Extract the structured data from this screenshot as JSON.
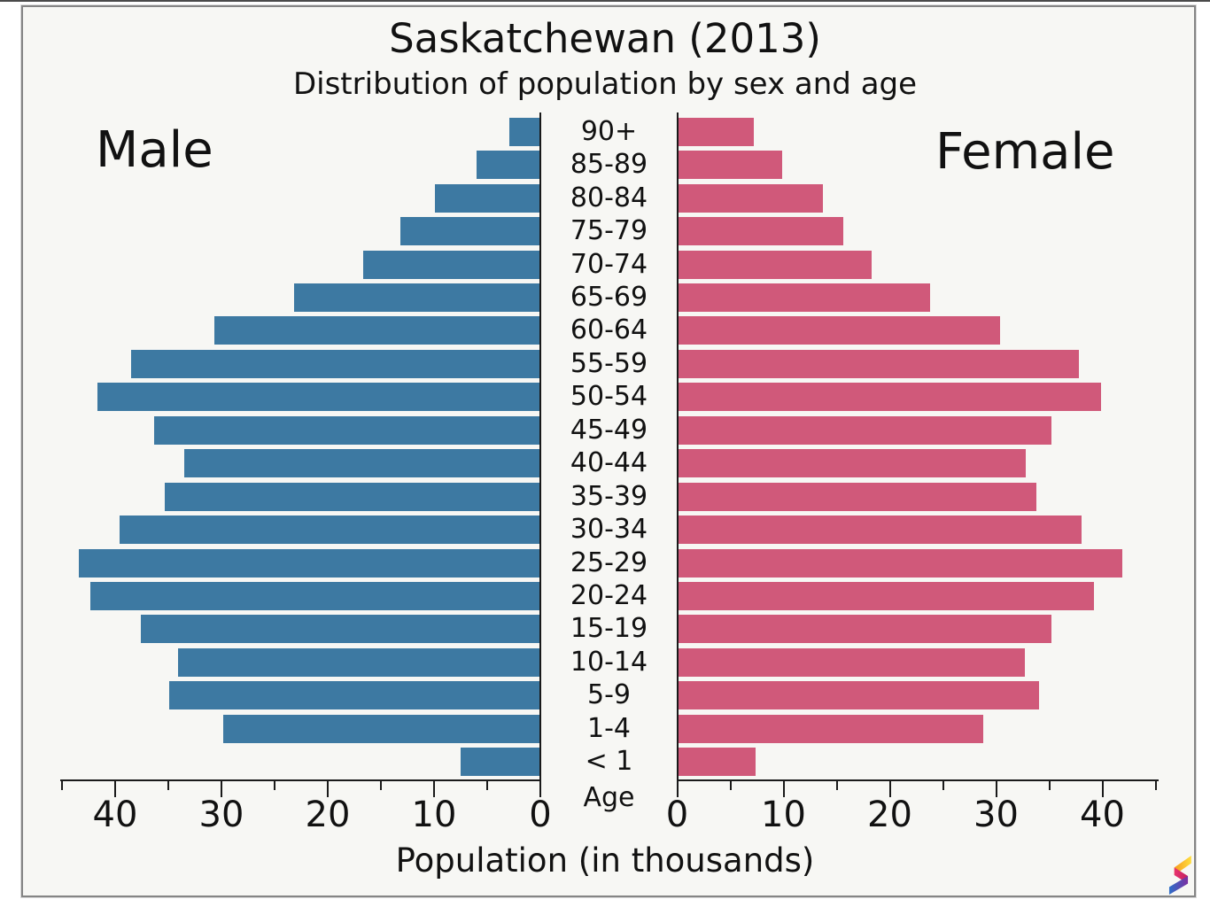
{
  "title": "Saskatchewan (2013)",
  "subtitle": "Distribution of population by sex and age",
  "left_side_label": "Male",
  "right_side_label": "Female",
  "age_axis_label": "Age",
  "x_axis_label": "Population (in thousands)",
  "colors": {
    "male_bar": "#3d79a2",
    "female_bar": "#d0597a",
    "plot_background": "#f7f7f4",
    "axis": "#1a1a1a",
    "text": "#111111"
  },
  "logo": {
    "name": "s-ribbon-logo",
    "segment_colors": [
      "#ffdf3d",
      "#f59b1e",
      "#e8336e",
      "#c22060",
      "#7b2fa2",
      "#2d6fc8"
    ]
  },
  "chart_data": {
    "type": "bar",
    "variant": "population-pyramid",
    "title": "Saskatchewan (2013)",
    "subtitle": "Distribution of population by sex and age",
    "xlabel": "Population (in thousands)",
    "age_label": "Age",
    "categories_top_to_bottom": [
      "90+",
      "85-89",
      "80-84",
      "75-79",
      "70-74",
      "65-69",
      "60-64",
      "55-59",
      "50-54",
      "45-49",
      "40-44",
      "35-39",
      "30-34",
      "25-29",
      "20-24",
      "15-19",
      "10-14",
      "5-9",
      "1-4",
      "< 1"
    ],
    "series": [
      {
        "name": "Male",
        "side": "left",
        "values": [
          2.9,
          6.0,
          9.9,
          13.2,
          16.7,
          23.2,
          30.7,
          38.5,
          41.7,
          36.3,
          33.5,
          35.3,
          39.6,
          43.4,
          42.3,
          37.6,
          34.1,
          34.9,
          29.8,
          7.5
        ]
      },
      {
        "name": "Female",
        "side": "right",
        "values": [
          7.2,
          9.9,
          13.7,
          15.6,
          18.3,
          23.8,
          30.4,
          37.8,
          39.9,
          35.2,
          32.8,
          33.8,
          38.0,
          41.9,
          39.2,
          35.2,
          32.7,
          34.0,
          28.8,
          7.4
        ]
      }
    ],
    "xlim": [
      0,
      45
    ],
    "ticks_major": [
      0,
      10,
      20,
      30,
      40
    ],
    "ticks_minor": [
      5,
      15,
      25,
      35,
      45
    ],
    "grid": false,
    "legend": "side labels Male / Female"
  }
}
